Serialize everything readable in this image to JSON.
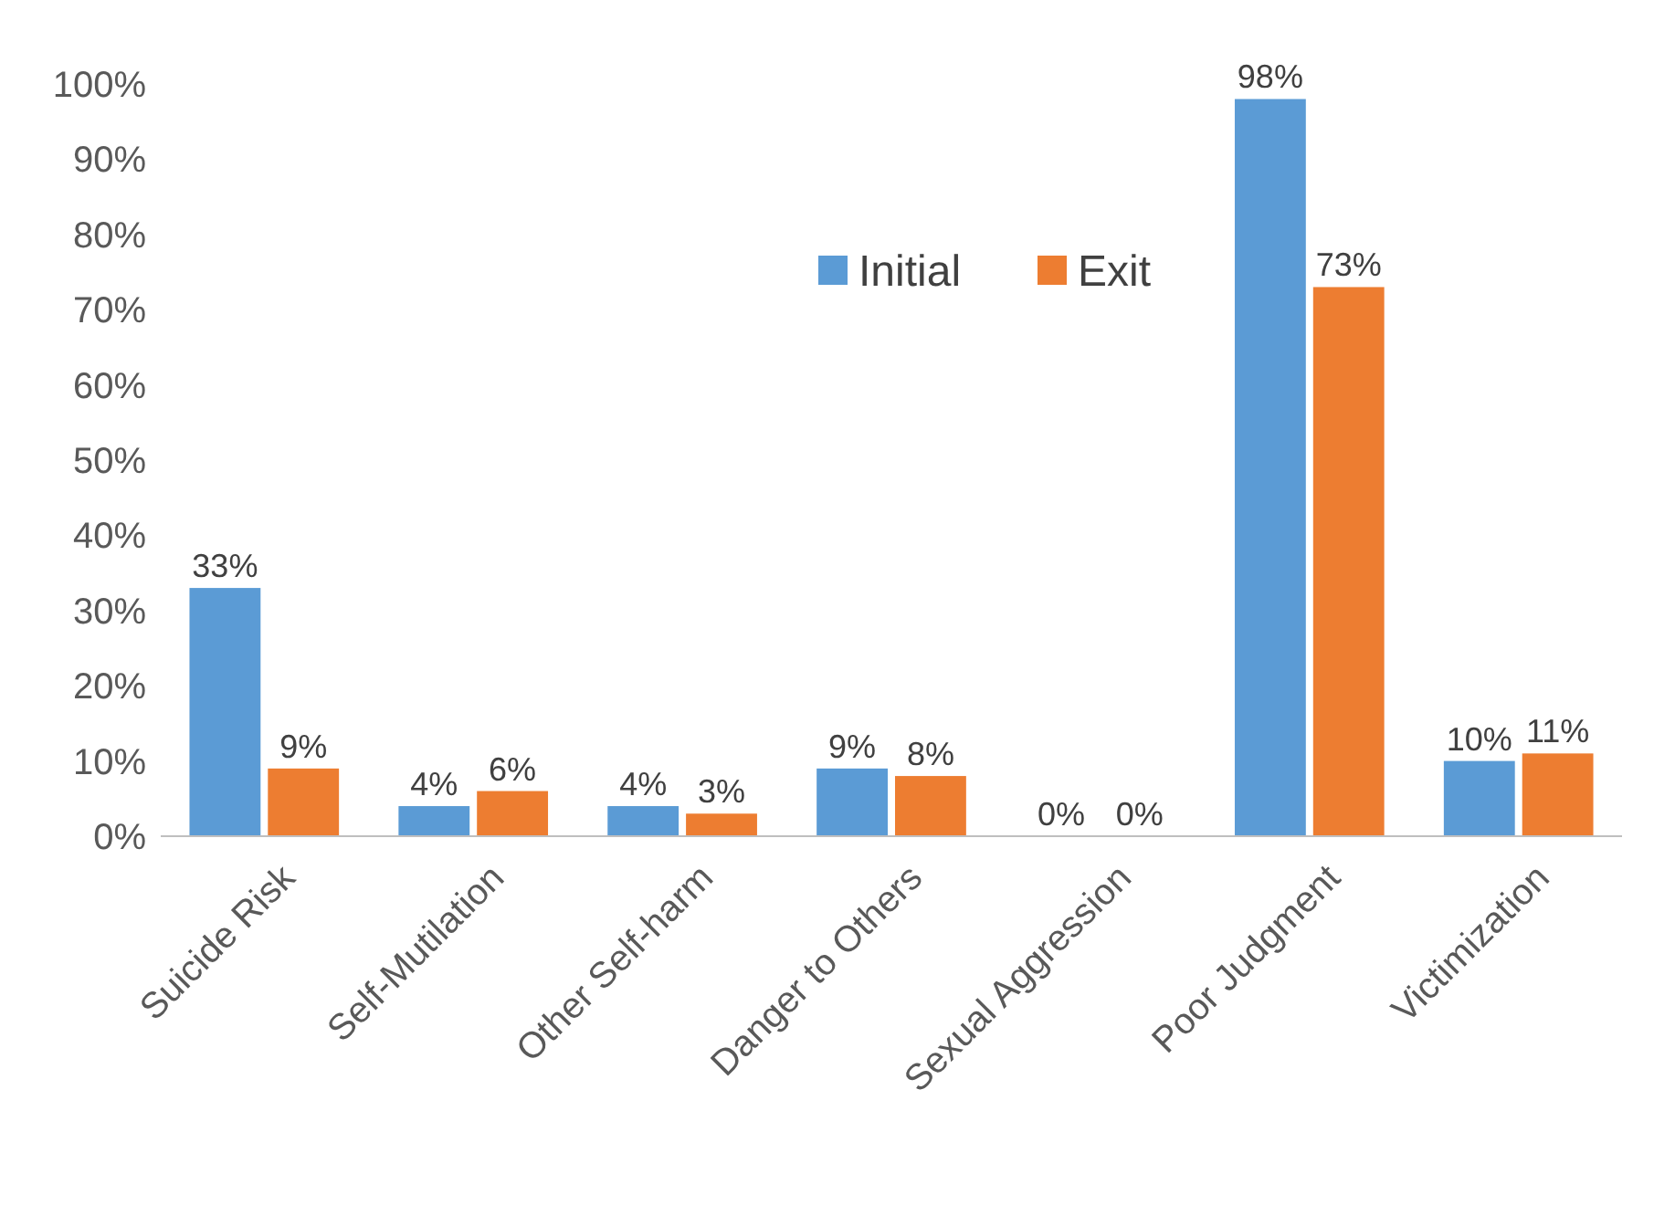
{
  "chart_data": {
    "type": "bar",
    "categories": [
      "Suicide Risk",
      "Self-Mutilation",
      "Other Self-harm",
      "Danger to Others",
      "Sexual Aggression",
      "Poor Judgment",
      "Victimization"
    ],
    "series": [
      {
        "name": "Initial",
        "color": "#5b9bd5",
        "values": [
          33,
          4,
          4,
          9,
          0,
          98,
          10
        ],
        "value_labels": [
          "33%",
          "4%",
          "4%",
          "9%",
          "0%",
          "98%",
          "10%"
        ]
      },
      {
        "name": "Exit",
        "color": "#ed7d31",
        "values": [
          9,
          6,
          3,
          8,
          0,
          73,
          11
        ],
        "value_labels": [
          "9%",
          "6%",
          "3%",
          "8%",
          "0%",
          "73%",
          "11%"
        ]
      }
    ],
    "ylim": [
      0,
      100
    ],
    "yticks": [
      {
        "value": 0,
        "label": "0%"
      },
      {
        "value": 10,
        "label": "10%"
      },
      {
        "value": 20,
        "label": "20%"
      },
      {
        "value": 30,
        "label": "30%"
      },
      {
        "value": 40,
        "label": "40%"
      },
      {
        "value": 50,
        "label": "50%"
      },
      {
        "value": 60,
        "label": "60%"
      },
      {
        "value": 70,
        "label": "70%"
      },
      {
        "value": 80,
        "label": "80%"
      },
      {
        "value": 90,
        "label": "90%"
      },
      {
        "value": 100,
        "label": "100%"
      }
    ],
    "grid": false,
    "legend": "top"
  }
}
